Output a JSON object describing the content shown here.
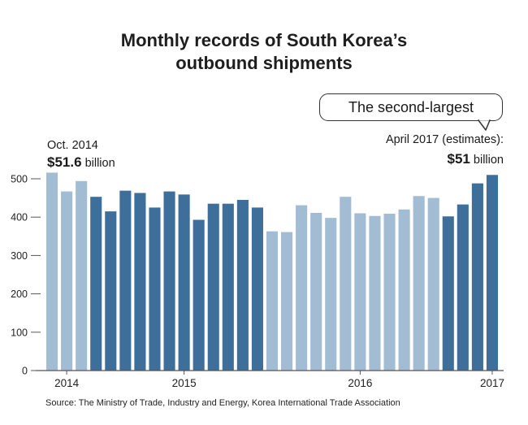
{
  "chart_data": {
    "type": "bar",
    "title": "Monthly records of South Korea’s outbound shipments",
    "xlabel": "",
    "ylabel": "",
    "ylim": [
      0,
      550
    ],
    "yticks": [
      0,
      100,
      200,
      300,
      400,
      500
    ],
    "x_tick_labels": [
      {
        "label": "2014",
        "index": 1
      },
      {
        "label": "2015",
        "index": 9
      },
      {
        "label": "2016",
        "index": 21
      },
      {
        "label": "2017",
        "index": 30
      }
    ],
    "values": [
      516,
      467,
      494,
      453,
      415,
      469,
      463,
      425,
      467,
      459,
      393,
      435,
      435,
      445,
      425,
      363,
      361,
      431,
      411,
      398,
      453,
      410,
      403,
      409,
      420,
      455,
      450,
      402,
      433,
      488,
      510
    ],
    "year_shading": [
      "light",
      "light",
      "light",
      "dark",
      "dark",
      "dark",
      "dark",
      "dark",
      "dark",
      "dark",
      "dark",
      "dark",
      "dark",
      "dark",
      "dark",
      "light",
      "light",
      "light",
      "light",
      "light",
      "light",
      "light",
      "light",
      "light",
      "light",
      "light",
      "light",
      "dark",
      "dark",
      "dark",
      "dark"
    ],
    "colors": {
      "light": "#a1bcd3",
      "dark": "#3e6f9a",
      "axis": "#555555"
    },
    "annotations": {
      "left_label": "Oct. 2014",
      "left_value": "$51.6",
      "left_unit": "billion",
      "right_label": "April 2017 (estimates):",
      "right_value": "$51",
      "right_unit": "billion",
      "callout": "The second-largest"
    },
    "source": "Source: The Ministry of Trade, Industry and Energy, Korea International Trade Association"
  }
}
